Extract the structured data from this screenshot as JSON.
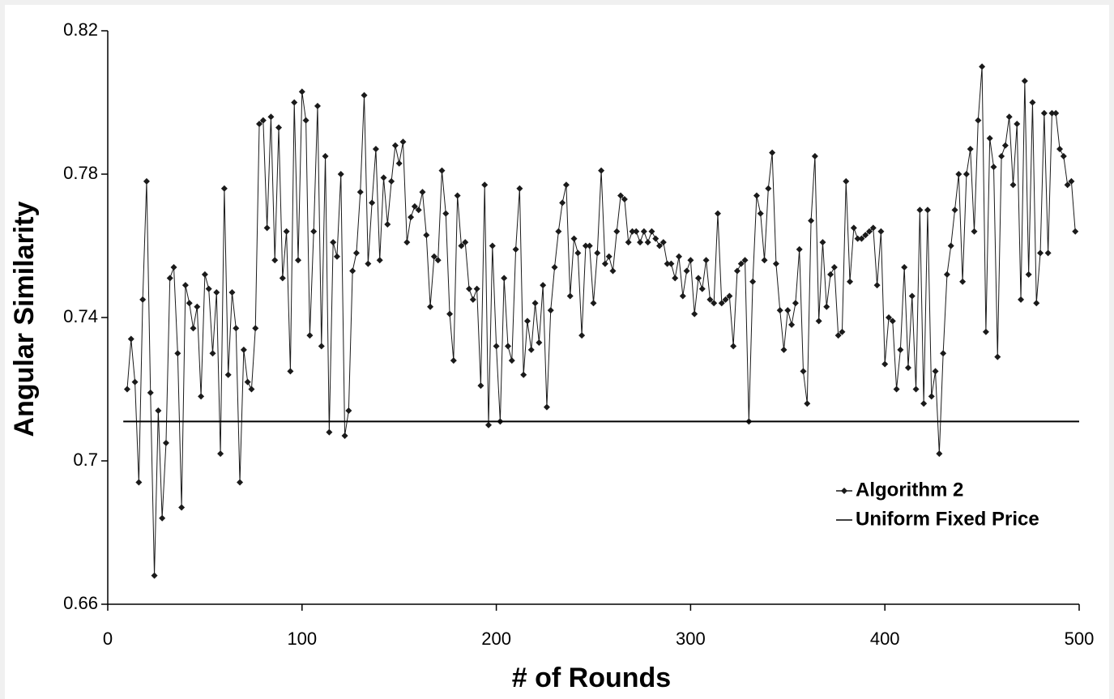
{
  "chart_data": {
    "type": "line",
    "ylabel": "Angular Similarity",
    "xlabel": "# of Rounds",
    "xlim": [
      0,
      500
    ],
    "xticks": [
      0,
      100,
      200,
      300,
      400,
      500
    ],
    "ylim": [
      0.66,
      0.82
    ],
    "yticks": [
      0.66,
      0.7,
      0.74,
      0.78,
      0.82
    ],
    "grid": false,
    "legend_position": "lower right",
    "series": [
      {
        "name": "Algorithm 2",
        "color": "#1a1a1a",
        "marker": "diamond",
        "x": [
          10,
          12,
          14,
          16,
          18,
          20,
          22,
          24,
          26,
          28,
          30,
          32,
          34,
          36,
          38,
          40,
          42,
          44,
          46,
          48,
          50,
          52,
          54,
          56,
          58,
          60,
          62,
          64,
          66,
          68,
          70,
          72,
          74,
          76,
          78,
          80,
          82,
          84,
          86,
          88,
          90,
          92,
          94,
          96,
          98,
          100,
          102,
          104,
          106,
          108,
          110,
          112,
          114,
          116,
          118,
          120,
          122,
          124,
          126,
          128,
          130,
          132,
          134,
          136,
          138,
          140,
          142,
          144,
          146,
          148,
          150,
          152,
          154,
          156,
          158,
          160,
          162,
          164,
          166,
          168,
          170,
          172,
          174,
          176,
          178,
          180,
          182,
          184,
          186,
          188,
          190,
          192,
          194,
          196,
          198,
          200,
          202,
          204,
          206,
          208,
          210,
          212,
          214,
          216,
          218,
          220,
          222,
          224,
          226,
          228,
          230,
          232,
          234,
          236,
          238,
          240,
          242,
          244,
          246,
          248,
          250,
          252,
          254,
          256,
          258,
          260,
          262,
          264,
          266,
          268,
          270,
          272,
          274,
          276,
          278,
          280,
          282,
          284,
          286,
          288,
          290,
          292,
          294,
          296,
          298,
          300,
          302,
          304,
          306,
          308,
          310,
          312,
          314,
          316,
          318,
          320,
          322,
          324,
          326,
          328,
          330,
          332,
          334,
          336,
          338,
          340,
          342,
          344,
          346,
          348,
          350,
          352,
          354,
          356,
          358,
          360,
          362,
          364,
          366,
          368,
          370,
          372,
          374,
          376,
          378,
          380,
          382,
          384,
          386,
          388,
          390,
          392,
          394,
          396,
          398,
          400,
          402,
          404,
          406,
          408,
          410,
          412,
          414,
          416,
          418,
          420,
          422,
          424,
          426,
          428,
          430,
          432,
          434,
          436,
          438,
          440,
          442,
          444,
          446,
          448,
          450,
          452,
          454,
          456,
          458,
          460,
          462,
          464,
          466,
          468,
          470,
          472,
          474,
          476,
          478,
          480,
          482,
          484,
          486,
          488,
          490,
          492,
          494,
          496,
          498
        ],
        "values": [
          0.72,
          0.734,
          0.722,
          0.694,
          0.745,
          0.778,
          0.719,
          0.668,
          0.714,
          0.684,
          0.705,
          0.751,
          0.754,
          0.73,
          0.687,
          0.749,
          0.744,
          0.737,
          0.743,
          0.718,
          0.752,
          0.748,
          0.73,
          0.747,
          0.702,
          0.776,
          0.724,
          0.747,
          0.737,
          0.694,
          0.731,
          0.722,
          0.72,
          0.737,
          0.794,
          0.795,
          0.765,
          0.796,
          0.756,
          0.793,
          0.751,
          0.764,
          0.725,
          0.8,
          0.756,
          0.803,
          0.795,
          0.735,
          0.764,
          0.799,
          0.732,
          0.785,
          0.708,
          0.761,
          0.757,
          0.78,
          0.707,
          0.714,
          0.753,
          0.758,
          0.775,
          0.802,
          0.755,
          0.772,
          0.787,
          0.756,
          0.779,
          0.766,
          0.778,
          0.788,
          0.783,
          0.789,
          0.761,
          0.768,
          0.771,
          0.77,
          0.775,
          0.763,
          0.743,
          0.757,
          0.756,
          0.781,
          0.769,
          0.741,
          0.728,
          0.774,
          0.76,
          0.761,
          0.748,
          0.745,
          0.748,
          0.721,
          0.777,
          0.71,
          0.76,
          0.732,
          0.711,
          0.751,
          0.732,
          0.728,
          0.759,
          0.776,
          0.724,
          0.739,
          0.731,
          0.744,
          0.733,
          0.749,
          0.715,
          0.742,
          0.754,
          0.764,
          0.772,
          0.777,
          0.746,
          0.762,
          0.758,
          0.735,
          0.76,
          0.76,
          0.744,
          0.758,
          0.781,
          0.755,
          0.757,
          0.753,
          0.764,
          0.774,
          0.773,
          0.761,
          0.764,
          0.764,
          0.761,
          0.764,
          0.761,
          0.764,
          0.762,
          0.76,
          0.761,
          0.755,
          0.755,
          0.751,
          0.757,
          0.746,
          0.753,
          0.756,
          0.741,
          0.751,
          0.748,
          0.756,
          0.745,
          0.744,
          0.769,
          0.744,
          0.745,
          0.746,
          0.732,
          0.753,
          0.755,
          0.756,
          0.711,
          0.75,
          0.774,
          0.769,
          0.756,
          0.776,
          0.786,
          0.755,
          0.742,
          0.731,
          0.742,
          0.738,
          0.744,
          0.759,
          0.725,
          0.716,
          0.767,
          0.785,
          0.739,
          0.761,
          0.743,
          0.752,
          0.754,
          0.735,
          0.736,
          0.778,
          0.75,
          0.765,
          0.762,
          0.762,
          0.763,
          0.764,
          0.765,
          0.749,
          0.764,
          0.727,
          0.74,
          0.739,
          0.72,
          0.731,
          0.754,
          0.726,
          0.746,
          0.72,
          0.77,
          0.716,
          0.77,
          0.718,
          0.725,
          0.702,
          0.73,
          0.752,
          0.76,
          0.77,
          0.78,
          0.75,
          0.78,
          0.787,
          0.764,
          0.795,
          0.81,
          0.736,
          0.79,
          0.782,
          0.729,
          0.785,
          0.788,
          0.796,
          0.777,
          0.794,
          0.745,
          0.806,
          0.752,
          0.8,
          0.744,
          0.758,
          0.797,
          0.758,
          0.797,
          0.797,
          0.787,
          0.785,
          0.777,
          0.778,
          0.764
        ]
      },
      {
        "name": "Uniform Fixed Price",
        "color": "#000000",
        "marker": "none",
        "x": [
          8,
          500
        ],
        "values": [
          0.711,
          0.711
        ]
      }
    ]
  }
}
